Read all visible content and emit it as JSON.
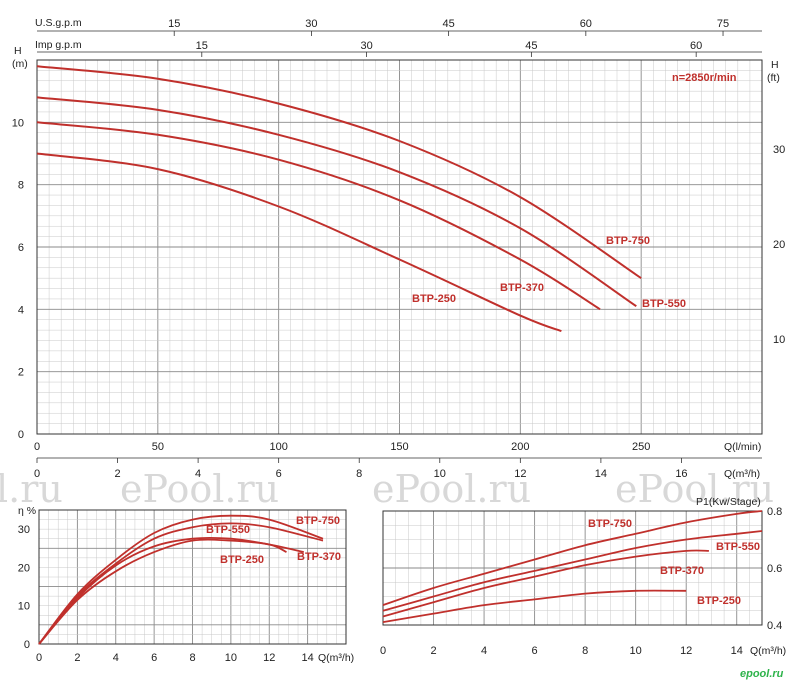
{
  "chart_data": [
    {
      "type": "line",
      "speed_note": "n=2850r/min",
      "y_left_label_1": "H",
      "y_left_label_2": "(m)",
      "y_right_label_1": "H",
      "y_right_label_2": "(ft)",
      "x_label_lmin": "Q(l/min)",
      "x_label_m3h": "Q(m³/h)",
      "x_label_usgpm": "U.S.g.p.m",
      "x_label_impgpm": "Imp g.p.m",
      "x_lmin_ticks": [
        0,
        50,
        100,
        150,
        200,
        250
      ],
      "x_m3h_ticks": [
        0,
        2,
        4,
        6,
        8,
        10,
        12,
        14,
        16
      ],
      "x_m3h_last_label": "Q(m³/h)",
      "usgpm_ticks": [
        15,
        30,
        45,
        60,
        75
      ],
      "impgpm_ticks": [
        15,
        30,
        45,
        60
      ],
      "y_m_ticks": [
        0,
        2,
        4,
        6,
        8,
        10
      ],
      "y_ft_ticks": [
        10,
        20,
        30
      ],
      "xlim": [
        0,
        300
      ],
      "ylim": [
        0,
        12
      ],
      "series": [
        {
          "name": "BTP-750",
          "x": [
            0,
            50,
            100,
            150,
            200,
            250
          ],
          "y": [
            11.8,
            11.4,
            10.6,
            9.4,
            7.6,
            5.0
          ]
        },
        {
          "name": "BTP-550",
          "x": [
            0,
            50,
            100,
            150,
            200,
            248
          ],
          "y": [
            10.8,
            10.4,
            9.6,
            8.4,
            6.6,
            4.1
          ]
        },
        {
          "name": "BTP-370",
          "x": [
            0,
            50,
            100,
            150,
            200,
            233
          ],
          "y": [
            10.0,
            9.6,
            8.8,
            7.5,
            5.6,
            4.0
          ]
        },
        {
          "name": "BTP-250",
          "x": [
            0,
            50,
            100,
            150,
            200,
            217
          ],
          "y": [
            9.0,
            8.5,
            7.3,
            5.6,
            3.8,
            3.3
          ]
        }
      ]
    },
    {
      "type": "line",
      "y_label": "η %",
      "x_label": "Q(m³/h)",
      "x_ticks": [
        0,
        2,
        4,
        6,
        8,
        10,
        12,
        14
      ],
      "y_ticks": [
        0,
        10,
        20,
        30
      ],
      "xlim": [
        0,
        16
      ],
      "ylim": [
        0,
        35
      ],
      "series": [
        {
          "name": "BTP-750",
          "x": [
            0,
            2,
            4,
            6,
            8,
            10,
            12,
            14.8
          ],
          "y": [
            0,
            13,
            22,
            29,
            32.5,
            33.5,
            32.5,
            27.5
          ]
        },
        {
          "name": "BTP-550",
          "x": [
            0,
            2,
            4,
            6,
            8,
            10,
            12,
            14.8
          ],
          "y": [
            0,
            12.5,
            21,
            27.5,
            30.5,
            31.5,
            30.5,
            27
          ]
        },
        {
          "name": "BTP-370",
          "x": [
            0,
            2,
            4,
            6,
            8,
            10,
            12,
            13.8
          ],
          "y": [
            0,
            12,
            20.5,
            25.5,
            27.5,
            27.5,
            26,
            24
          ]
        },
        {
          "name": "BTP-250",
          "x": [
            0,
            2,
            4,
            6,
            8,
            10,
            12,
            12.9
          ],
          "y": [
            0,
            11.5,
            19,
            24,
            27,
            27,
            26,
            24
          ]
        }
      ]
    },
    {
      "type": "line",
      "y_label": "P1(Kw/Stage)",
      "x_label": "Q(m³/h)",
      "x_ticks": [
        0,
        2,
        4,
        6,
        8,
        10,
        12,
        14
      ],
      "y_ticks": [
        0.4,
        0.6,
        0.8
      ],
      "xlim": [
        0,
        15
      ],
      "ylim": [
        0.4,
        0.8
      ],
      "series": [
        {
          "name": "BTP-750",
          "x": [
            0,
            2,
            4,
            6,
            8,
            10,
            12,
            14,
            15
          ],
          "y": [
            0.47,
            0.53,
            0.58,
            0.63,
            0.68,
            0.72,
            0.76,
            0.79,
            0.8
          ]
        },
        {
          "name": "BTP-550",
          "x": [
            0,
            2,
            4,
            6,
            8,
            10,
            12,
            14,
            15
          ],
          "y": [
            0.45,
            0.5,
            0.55,
            0.59,
            0.63,
            0.67,
            0.7,
            0.72,
            0.73
          ]
        },
        {
          "name": "BTP-370",
          "x": [
            0,
            2,
            4,
            6,
            8,
            10,
            12,
            12.9
          ],
          "y": [
            0.43,
            0.48,
            0.53,
            0.57,
            0.61,
            0.64,
            0.66,
            0.66
          ]
        },
        {
          "name": "BTP-250",
          "x": [
            0,
            2,
            4,
            6,
            8,
            10,
            12
          ],
          "y": [
            0.41,
            0.44,
            0.47,
            0.49,
            0.51,
            0.52,
            0.52
          ]
        }
      ]
    }
  ],
  "watermark": "ePool.ru",
  "watermark_partial": "l.ru",
  "logo": "epool.ru",
  "colors": {
    "curve": "#c0302c",
    "grid_minor": "#c9c9c9",
    "grid_major": "#8a8a8a",
    "axis": "#333333",
    "watermark": "#d8d8d8",
    "logo": "#2db34a"
  }
}
